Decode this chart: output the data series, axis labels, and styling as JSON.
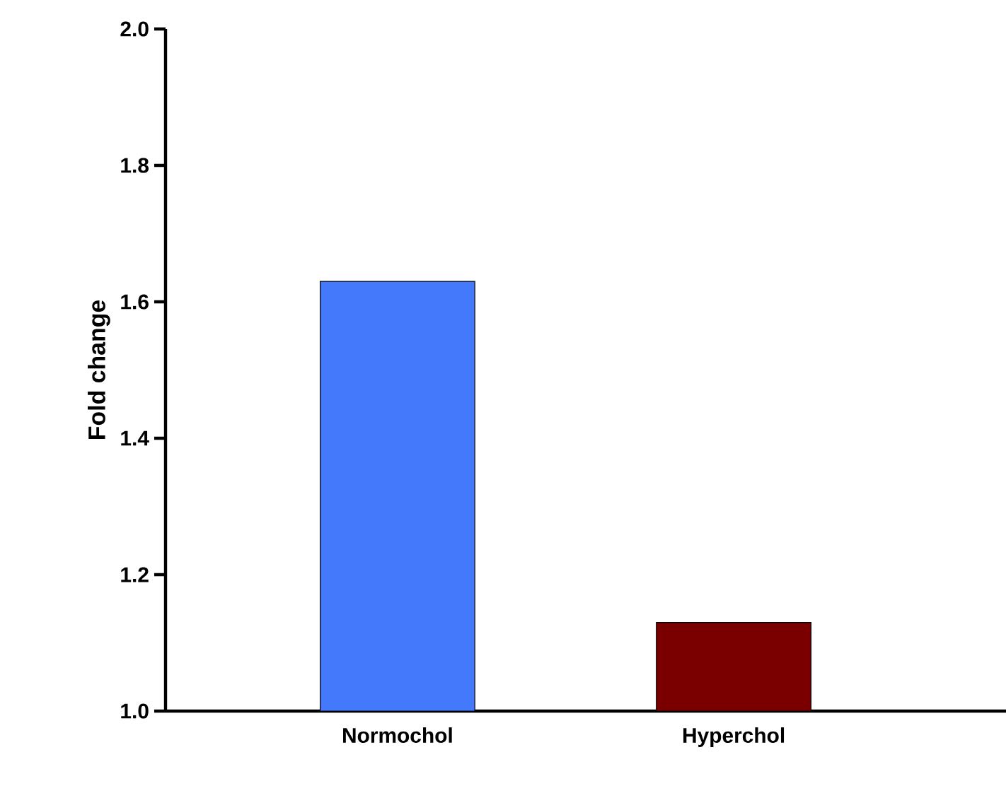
{
  "chart_data": {
    "type": "bar",
    "ylabel": "Fold change",
    "categories": [
      "Normochol",
      "Hyperchol"
    ],
    "values": [
      1.63,
      1.13
    ],
    "colors": [
      "#4479fb",
      "#7a0000"
    ],
    "ylim": [
      1.0,
      2.0
    ],
    "yticks": [
      {
        "value": 1.0,
        "label": "1.0"
      },
      {
        "value": 1.2,
        "label": "1.2"
      },
      {
        "value": 1.4,
        "label": "1.4"
      },
      {
        "value": 1.6,
        "label": "1.6"
      },
      {
        "value": 1.8,
        "label": "1.8"
      },
      {
        "value": 2.0,
        "label": "2.0"
      }
    ]
  }
}
